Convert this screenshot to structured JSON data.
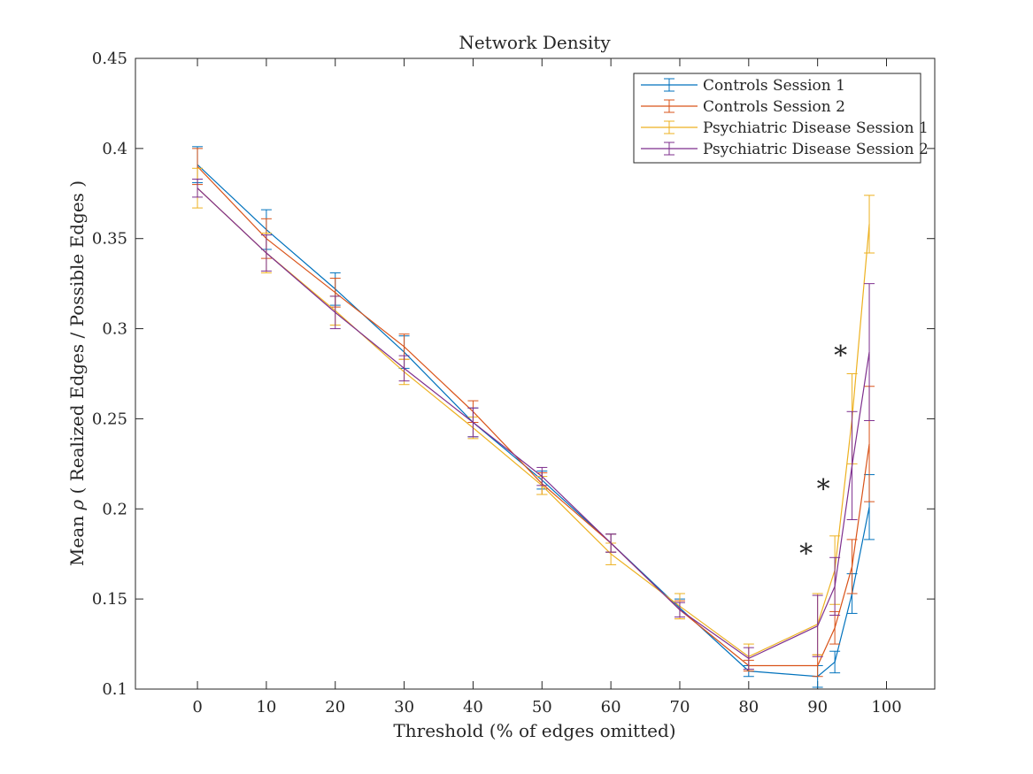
{
  "chart_data": {
    "type": "line",
    "title": "Network Density",
    "xlabel": "Threshold (% of edges omitted)",
    "ylabel_prefix": "Mean ",
    "ylabel_symbol": "ρ",
    "ylabel_suffix": " ( Realized Edges / Possible Edges )",
    "xlim": [
      -9,
      107
    ],
    "ylim": [
      0.1,
      0.45
    ],
    "xticks": [
      0,
      10,
      20,
      30,
      40,
      50,
      60,
      70,
      80,
      90,
      100
    ],
    "yticks": [
      0.1,
      0.15,
      0.2,
      0.25,
      0.3,
      0.35,
      0.4,
      0.45
    ],
    "ytick_labels": [
      "0.1",
      "0.15",
      "0.2",
      "0.25",
      "0.3",
      "0.35",
      "0.4",
      "0.45"
    ],
    "grid": false,
    "legend_position": "top-right",
    "x": [
      0,
      10,
      20,
      30,
      40,
      50,
      60,
      70,
      80,
      90,
      92.5,
      95,
      97.5
    ],
    "series": [
      {
        "name": "Controls Session 1",
        "color": "#0072BD",
        "values": [
          0.391,
          0.355,
          0.322,
          0.287,
          0.248,
          0.216,
          0.181,
          0.145,
          0.11,
          0.107,
          0.115,
          0.153,
          0.201
        ],
        "errors": [
          0.01,
          0.011,
          0.009,
          0.009,
          0.008,
          0.005,
          0.005,
          0.005,
          0.003,
          0.006,
          0.006,
          0.011,
          0.018
        ]
      },
      {
        "name": "Controls Session 2",
        "color": "#D95319",
        "values": [
          0.39,
          0.35,
          0.32,
          0.29,
          0.254,
          0.214,
          0.181,
          0.144,
          0.113,
          0.113,
          0.134,
          0.168,
          0.236
        ],
        "errors": [
          0.01,
          0.011,
          0.008,
          0.007,
          0.006,
          0.006,
          0.005,
          0.005,
          0.003,
          0.006,
          0.009,
          0.015,
          0.032
        ]
      },
      {
        "name": "Psychiatric Disease Session 1",
        "color": "#EDB120",
        "values": [
          0.378,
          0.342,
          0.31,
          0.276,
          0.245,
          0.213,
          0.175,
          0.146,
          0.118,
          0.136,
          0.166,
          0.25,
          0.358
        ],
        "errors": [
          0.011,
          0.011,
          0.008,
          0.007,
          0.006,
          0.005,
          0.006,
          0.007,
          0.007,
          0.017,
          0.019,
          0.025,
          0.016
        ]
      },
      {
        "name": "Psychiatric Disease Session 2",
        "color": "#7E2F8E",
        "values": [
          0.378,
          0.342,
          0.309,
          0.278,
          0.248,
          0.218,
          0.181,
          0.144,
          0.117,
          0.135,
          0.157,
          0.224,
          0.287
        ],
        "errors": [
          0.005,
          0.01,
          0.009,
          0.007,
          0.008,
          0.005,
          0.005,
          0.004,
          0.006,
          0.017,
          0.016,
          0.03,
          0.038
        ]
      }
    ],
    "significance_markers": {
      "symbol": "*",
      "points": [
        {
          "x": 90,
          "y": 0.176
        },
        {
          "x": 92.5,
          "y": 0.212
        },
        {
          "x": 95,
          "y": 0.286
        }
      ]
    }
  }
}
